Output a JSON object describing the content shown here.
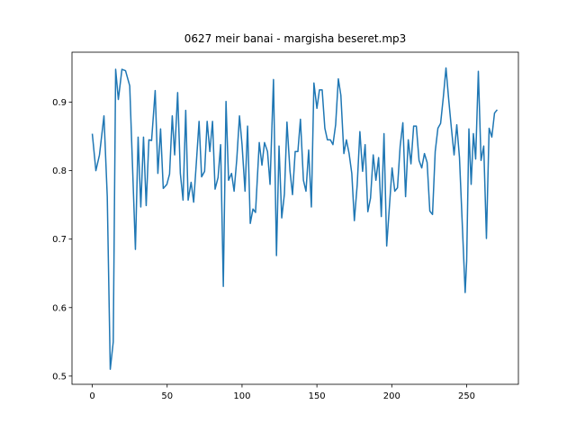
{
  "chart_data": {
    "type": "line",
    "title": "0627 meir banai - margisha beseret.mp3",
    "x": [
      0,
      2.4,
      4.8,
      7.8,
      10,
      12,
      14,
      15.6,
      17.4,
      19.8,
      22.2,
      25,
      28.8,
      30.6,
      32.4,
      34.2,
      36,
      37.8,
      39.6,
      42,
      43.8,
      45.6,
      47.4,
      49.8,
      51.6,
      53.4,
      55,
      57,
      58.8,
      60.6,
      62.4,
      64,
      66,
      67.7,
      69.5,
      71.3,
      73,
      75,
      76.7,
      78.5,
      80.3,
      82,
      84,
      85.7,
      87.5,
      89.3,
      91,
      93,
      94.7,
      96.5,
      98.3,
      100,
      102,
      103.7,
      105.5,
      107.3,
      109,
      111.5,
      113.3,
      115,
      117,
      118.7,
      121,
      123,
      124.7,
      126.5,
      128.3,
      130,
      132,
      133.7,
      135.5,
      137.3,
      139,
      141,
      142.7,
      144.5,
      146.3,
      148,
      150,
      151.7,
      153.5,
      155.3,
      157,
      159,
      160.7,
      162.5,
      164.3,
      166,
      168,
      169.7,
      171.5,
      173.3,
      175,
      176.9,
      178.7,
      180.5,
      182.2,
      184,
      185.8,
      187.6,
      189.4,
      191.2,
      193,
      194.8,
      196.6,
      198.4,
      200.2,
      202,
      203.8,
      205.6,
      207.4,
      209.2,
      211,
      212.8,
      214.6,
      216.4,
      218.2,
      220,
      221.8,
      223.6,
      225.4,
      227.2,
      229,
      230.8,
      232.6,
      234.4,
      236.2,
      238,
      239.8,
      241.6,
      243.4,
      245.2,
      249,
      250,
      251.5,
      253,
      254.5,
      256,
      257.8,
      259.6,
      261.4,
      263.2,
      265,
      266.8,
      268.6,
      270.4
    ],
    "series": [
      {
        "color": "#1f77b4",
        "values": [
          0.854,
          0.8,
          0.823,
          0.88,
          0.762,
          0.51,
          0.55,
          0.948,
          0.904,
          0.948,
          0.946,
          0.924,
          0.685,
          0.849,
          0.747,
          0.849,
          0.749,
          0.845,
          0.844,
          0.917,
          0.796,
          0.861,
          0.774,
          0.78,
          0.795,
          0.88,
          0.823,
          0.914,
          0.796,
          0.757,
          0.888,
          0.757,
          0.783,
          0.754,
          0.812,
          0.872,
          0.791,
          0.799,
          0.872,
          0.828,
          0.872,
          0.773,
          0.79,
          0.838,
          0.631,
          0.901,
          0.786,
          0.796,
          0.77,
          0.817,
          0.88,
          0.838,
          0.77,
          0.865,
          0.723,
          0.744,
          0.739,
          0.841,
          0.808,
          0.841,
          0.828,
          0.78,
          0.933,
          0.676,
          0.836,
          0.731,
          0.766,
          0.871,
          0.8,
          0.765,
          0.828,
          0.828,
          0.875,
          0.786,
          0.77,
          0.83,
          0.747,
          0.928,
          0.891,
          0.918,
          0.918,
          0.862,
          0.845,
          0.845,
          0.838,
          0.867,
          0.934,
          0.91,
          0.825,
          0.845,
          0.825,
          0.796,
          0.727,
          0.779,
          0.857,
          0.799,
          0.838,
          0.74,
          0.76,
          0.823,
          0.786,
          0.819,
          0.733,
          0.854,
          0.69,
          0.747,
          0.804,
          0.77,
          0.775,
          0.836,
          0.87,
          0.762,
          0.845,
          0.81,
          0.865,
          0.865,
          0.815,
          0.804,
          0.825,
          0.812,
          0.741,
          0.736,
          0.828,
          0.862,
          0.869,
          0.907,
          0.95,
          0.904,
          0.862,
          0.823,
          0.867,
          0.819,
          0.622,
          0.668,
          0.861,
          0.78,
          0.854,
          0.817,
          0.945,
          0.815,
          0.836,
          0.701,
          0.862,
          0.849,
          0.884,
          0.889
        ]
      }
    ],
    "xlim": [
      -13.55,
      284.55
    ],
    "xticks": [
      0,
      50,
      100,
      150,
      200,
      250
    ],
    "ylim": [
      0.488,
      0.973
    ],
    "yticks": [
      0.5,
      0.6,
      0.7,
      0.8,
      0.9
    ]
  }
}
